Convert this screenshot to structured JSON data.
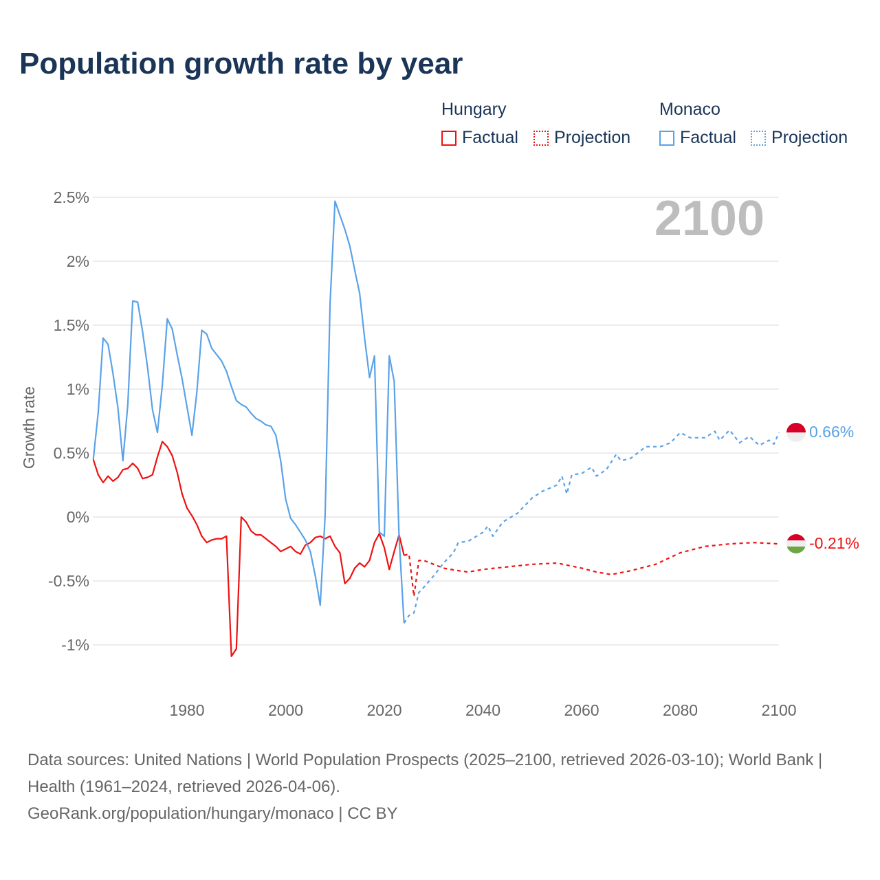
{
  "title": "Population growth rate by year",
  "legend": {
    "groups": [
      {
        "name": "Hungary",
        "factual": "Factual",
        "projection": "Projection",
        "color": "#ee1111"
      },
      {
        "name": "Monaco",
        "factual": "Factual",
        "projection": "Projection",
        "color": "#5aa2e8"
      }
    ]
  },
  "year_label": "2100",
  "end_labels": {
    "hungary": "-0.21%",
    "monaco": "0.66%"
  },
  "footer": {
    "line1": "Data sources: United Nations | World Population Prospects (2025–2100, retrieved 2026-03-10); World Bank | Health (1961–2024, retrieved 2026-04-06).",
    "line2": "GeoRank.org/population/hungary/monaco | CC BY"
  },
  "chart_data": {
    "type": "line",
    "title": "Population growth rate by year",
    "xlabel": "",
    "ylabel": "Growth rate",
    "xlim": [
      1961,
      2100
    ],
    "ylim": [
      -1.25,
      2.75
    ],
    "x_ticks": [
      1980,
      2000,
      2020,
      2040,
      2060,
      2080,
      2100
    ],
    "x_tick_labels": [
      "1980",
      "2000",
      "2020",
      "2040",
      "2060",
      "2080",
      "2100"
    ],
    "y_ticks": [
      -1,
      -0.5,
      0,
      0.5,
      1,
      1.5,
      2,
      2.5
    ],
    "y_tick_labels": [
      "-1%",
      "-0.5%",
      "0%",
      "0.5%",
      "1%",
      "1.5%",
      "2%",
      "2.5%"
    ],
    "grid": true,
    "legend_position": "top-right",
    "series": [
      {
        "name": "Hungary Factual",
        "color": "#ee1111",
        "dashed": false,
        "x": [
          1961,
          1962,
          1963,
          1964,
          1965,
          1966,
          1967,
          1968,
          1969,
          1970,
          1971,
          1972,
          1973,
          1974,
          1975,
          1976,
          1977,
          1978,
          1979,
          1980,
          1981,
          1982,
          1983,
          1984,
          1985,
          1986,
          1987,
          1988,
          1989,
          1990,
          1991,
          1992,
          1993,
          1994,
          1995,
          1996,
          1997,
          1998,
          1999,
          2000,
          2001,
          2002,
          2003,
          2004,
          2005,
          2006,
          2007,
          2008,
          2009,
          2010,
          2011,
          2012,
          2013,
          2014,
          2015,
          2016,
          2017,
          2018,
          2019,
          2020,
          2021,
          2022,
          2023,
          2024
        ],
        "y": [
          0.45,
          0.33,
          0.27,
          0.32,
          0.28,
          0.31,
          0.37,
          0.38,
          0.42,
          0.38,
          0.3,
          0.31,
          0.33,
          0.47,
          0.59,
          0.55,
          0.48,
          0.35,
          0.18,
          0.07,
          0.01,
          -0.06,
          -0.15,
          -0.2,
          -0.18,
          -0.17,
          -0.17,
          -0.15,
          -1.09,
          -1.03,
          0.0,
          -0.04,
          -0.11,
          -0.14,
          -0.14,
          -0.17,
          -0.2,
          -0.23,
          -0.27,
          -0.25,
          -0.23,
          -0.27,
          -0.29,
          -0.22,
          -0.2,
          -0.16,
          -0.15,
          -0.17,
          -0.15,
          -0.23,
          -0.28,
          -0.52,
          -0.48,
          -0.4,
          -0.36,
          -0.39,
          -0.34,
          -0.2,
          -0.13,
          -0.24,
          -0.41,
          -0.27,
          -0.14,
          -0.3
        ]
      },
      {
        "name": "Hungary Projection",
        "color": "#ee1111",
        "dashed": true,
        "x": [
          2024,
          2025,
          2026,
          2027,
          2028,
          2030,
          2032,
          2035,
          2037,
          2040,
          2045,
          2050,
          2055,
          2060,
          2063,
          2066,
          2070,
          2075,
          2080,
          2085,
          2090,
          2095,
          2100
        ],
        "y": [
          -0.3,
          -0.29,
          -0.62,
          -0.34,
          -0.34,
          -0.37,
          -0.4,
          -0.42,
          -0.43,
          -0.41,
          -0.39,
          -0.37,
          -0.36,
          -0.4,
          -0.43,
          -0.45,
          -0.42,
          -0.37,
          -0.28,
          -0.23,
          -0.21,
          -0.2,
          -0.21
        ]
      },
      {
        "name": "Monaco Factual",
        "color": "#5aa2e8",
        "dashed": false,
        "x": [
          1961,
          1962,
          1963,
          1964,
          1965,
          1966,
          1967,
          1968,
          1969,
          1970,
          1971,
          1972,
          1973,
          1974,
          1975,
          1976,
          1977,
          1978,
          1979,
          1980,
          1981,
          1982,
          1983,
          1984,
          1985,
          1986,
          1987,
          1988,
          1989,
          1990,
          1991,
          1992,
          1993,
          1994,
          1995,
          1996,
          1997,
          1998,
          1999,
          2000,
          2001,
          2002,
          2003,
          2004,
          2005,
          2006,
          2007,
          2008,
          2009,
          2010,
          2011,
          2012,
          2013,
          2014,
          2015,
          2016,
          2017,
          2018,
          2019,
          2020,
          2021,
          2022,
          2023,
          2024
        ],
        "y": [
          0.45,
          0.82,
          1.4,
          1.35,
          1.12,
          0.85,
          0.44,
          0.88,
          1.69,
          1.68,
          1.45,
          1.17,
          0.84,
          0.66,
          1.03,
          1.55,
          1.47,
          1.27,
          1.08,
          0.86,
          0.64,
          0.98,
          1.46,
          1.43,
          1.32,
          1.27,
          1.22,
          1.14,
          1.02,
          0.91,
          0.88,
          0.86,
          0.81,
          0.77,
          0.75,
          0.72,
          0.71,
          0.64,
          0.44,
          0.14,
          -0.01,
          -0.06,
          -0.12,
          -0.18,
          -0.27,
          -0.46,
          -0.69,
          0.01,
          1.67,
          2.47,
          2.36,
          2.25,
          2.12,
          1.93,
          1.75,
          1.4,
          1.09,
          1.26,
          -0.12,
          -0.15,
          1.26,
          1.06,
          -0.16,
          -0.83
        ]
      },
      {
        "name": "Monaco Projection",
        "color": "#5aa2e8",
        "dashed": true,
        "x": [
          2024,
          2025,
          2026,
          2027,
          2028,
          2030,
          2032,
          2034,
          2035,
          2037,
          2040,
          2041,
          2042,
          2044,
          2047,
          2050,
          2052,
          2055,
          2056,
          2057,
          2058,
          2060,
          2062,
          2063,
          2065,
          2067,
          2068,
          2070,
          2073,
          2076,
          2078,
          2080,
          2082,
          2085,
          2087,
          2088,
          2090,
          2092,
          2094,
          2096,
          2098,
          2099,
          2100
        ],
        "y": [
          -0.83,
          -0.77,
          -0.75,
          -0.59,
          -0.55,
          -0.46,
          -0.36,
          -0.28,
          -0.2,
          -0.19,
          -0.12,
          -0.07,
          -0.15,
          -0.04,
          0.03,
          0.15,
          0.2,
          0.25,
          0.32,
          0.18,
          0.33,
          0.34,
          0.39,
          0.32,
          0.37,
          0.49,
          0.44,
          0.46,
          0.55,
          0.55,
          0.58,
          0.66,
          0.62,
          0.62,
          0.67,
          0.6,
          0.68,
          0.58,
          0.63,
          0.56,
          0.6,
          0.57,
          0.66
        ]
      }
    ]
  }
}
